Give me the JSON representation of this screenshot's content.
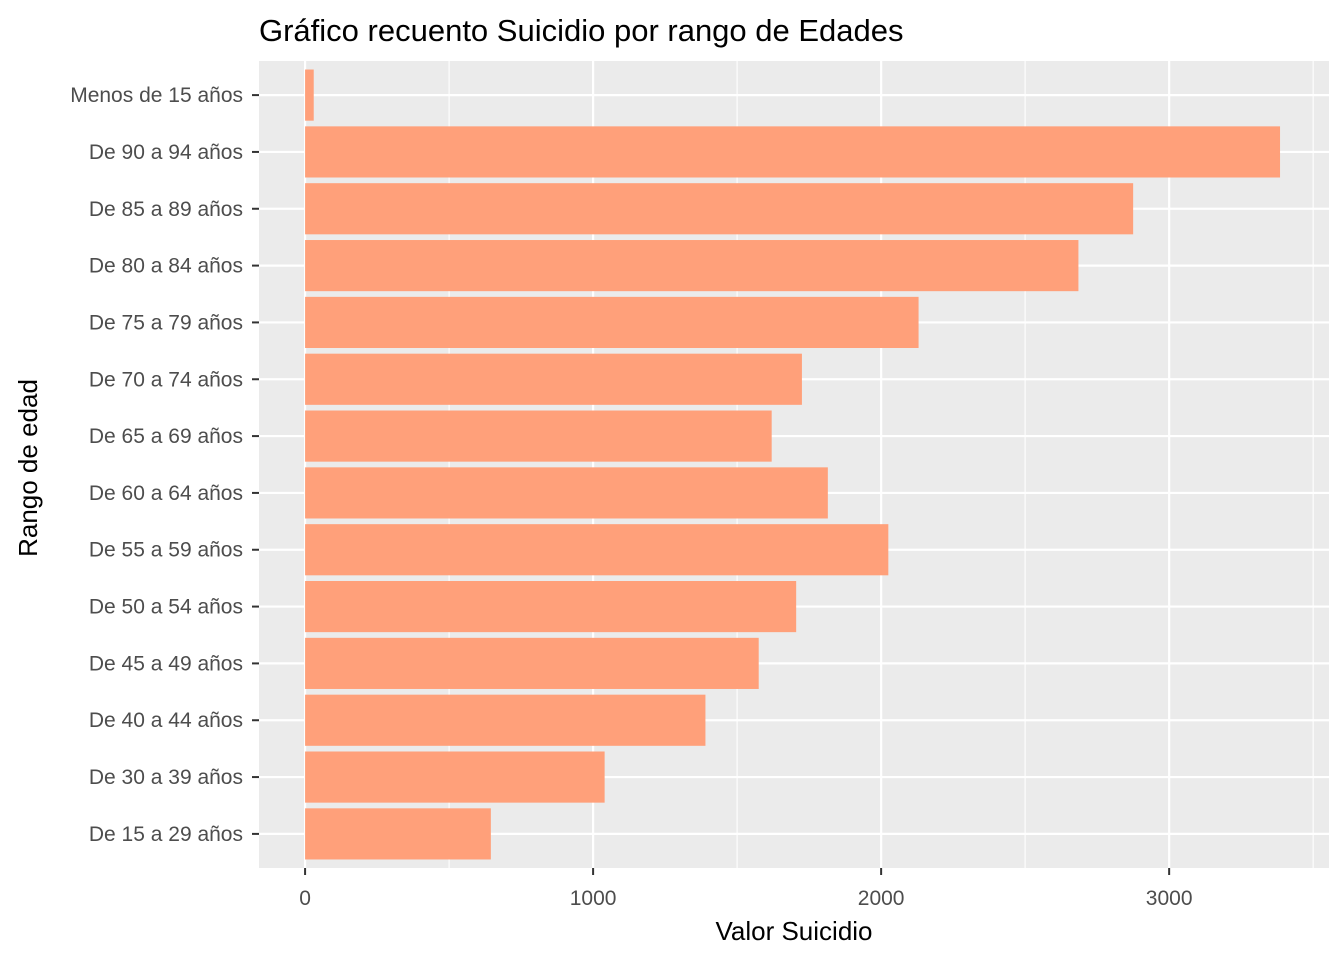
{
  "chart_data": {
    "type": "bar",
    "orientation": "horizontal",
    "title": "Gráfico recuento Suicidio por rango de Edades",
    "xlabel": "Valor Suicidio",
    "ylabel": "Rango de edad",
    "categories": [
      "De 15 a 29 años",
      "De 30 a 39 años",
      "De 40 a 44 años",
      "De 45 a 49 años",
      "De 50 a 54 años",
      "De 55 a 59 años",
      "De 60 a 64 años",
      "De 65 a 69 años",
      "De 70 a 74 años",
      "De 75 a 79 años",
      "De 80 a 84 años",
      "De 85 a 89 años",
      "De 90 a 94 años",
      "Menos de 15 años"
    ],
    "values": [
      645,
      1040,
      1390,
      1575,
      1705,
      2025,
      1815,
      1620,
      1725,
      2130,
      2685,
      2875,
      3385,
      30
    ],
    "x_ticks": [
      0,
      1000,
      2000,
      3000
    ],
    "xlim": [
      -160,
      3555
    ],
    "grid": true,
    "colors": {
      "bar": "#FFA07A",
      "panel": "#EBEBEB",
      "grid": "#FFFFFF"
    }
  }
}
